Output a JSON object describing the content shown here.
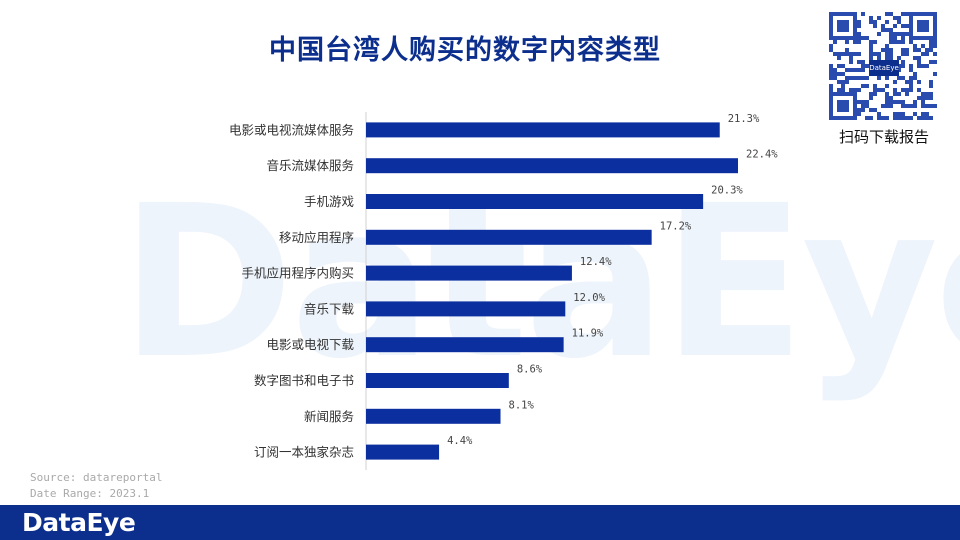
{
  "watermark_text": "DataEye",
  "qr": {
    "logo_text": "DataEye",
    "caption": "扫码下载报告"
  },
  "source": {
    "line1": "Source: datareportal",
    "line2": "Date Range: 2023.1"
  },
  "brand": "DataEye",
  "colors": {
    "bar": "#0c2fa0",
    "title": "#0c2f8e",
    "footer": "#0c2f8e"
  },
  "chart_data": {
    "type": "bar",
    "orientation": "horizontal",
    "title": "中国台湾人购买的数字内容类型",
    "categories": [
      "电影或电视流媒体服务",
      "音乐流媒体服务",
      "手机游戏",
      "移动应用程序",
      "手机应用程序内购买",
      "音乐下载",
      "电影或电视下载",
      "数字图书和电子书",
      "新闻服务",
      "订阅一本独家杂志"
    ],
    "values": [
      21.3,
      22.4,
      20.3,
      17.2,
      12.4,
      12.0,
      11.9,
      8.6,
      8.1,
      4.4
    ],
    "value_labels": [
      "21.3%",
      "22.4%",
      "20.3%",
      "17.2%",
      "12.4%",
      "12.0%",
      "11.9%",
      "8.6%",
      "8.1%",
      "4.4%"
    ],
    "xlim": [
      0,
      22.4
    ],
    "grid": false,
    "legend": "none"
  }
}
